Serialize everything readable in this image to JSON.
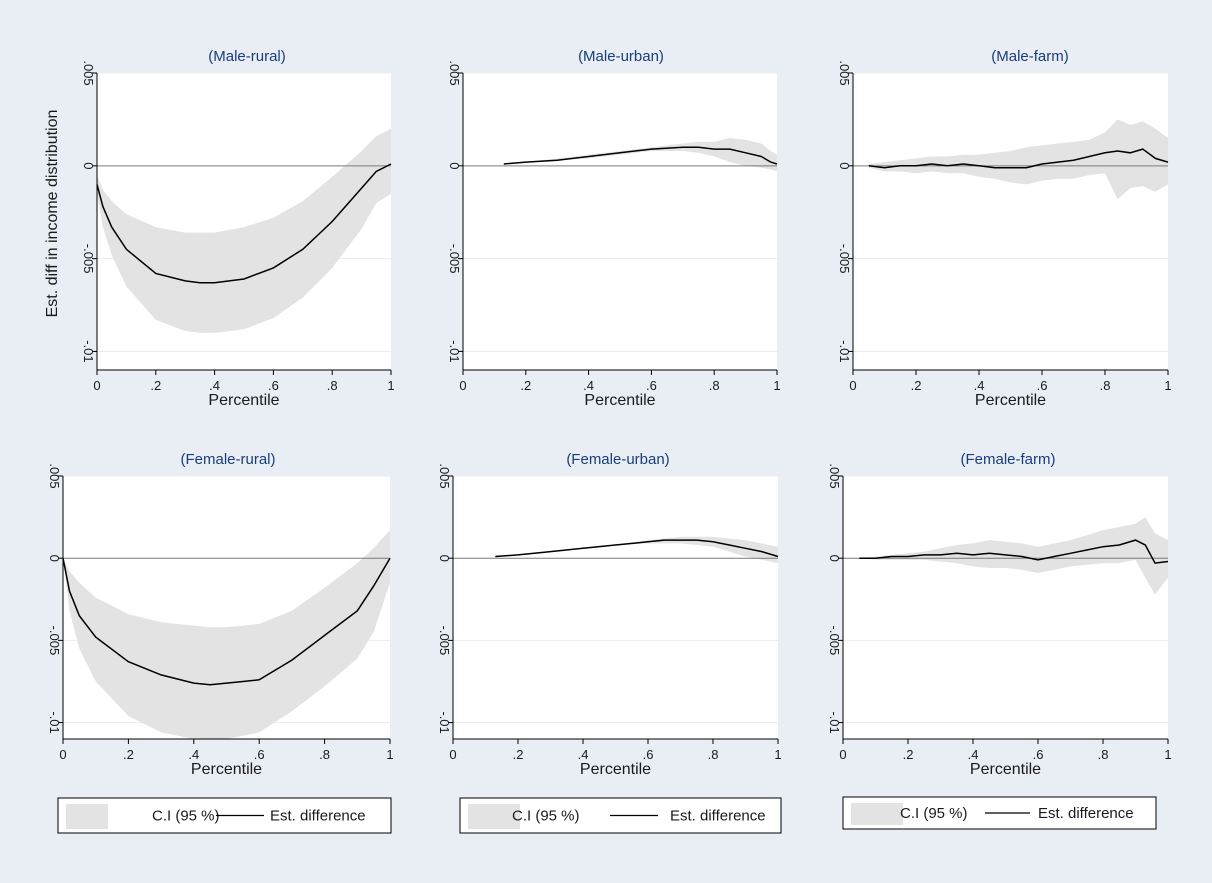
{
  "figure": {
    "background": "#e8eef4",
    "plot_background": "#ffffff",
    "ci_color": "#e3e3e3",
    "line_color": "#000000"
  },
  "chart_data": [
    {
      "type": "area",
      "title": "(Male-rural)",
      "xlabel": "Percentile",
      "ylabel": "Est. diff in income distribution",
      "xlim": [
        0,
        1
      ],
      "ylim": [
        -0.011,
        0.005
      ],
      "x_ticks": [
        "0",
        ".2",
        ".4",
        ".6",
        ".8",
        "1"
      ],
      "y_ticks": [
        ".005",
        "0",
        "-.005",
        "-.01"
      ],
      "x": [
        0,
        0.02,
        0.05,
        0.1,
        0.2,
        0.3,
        0.35,
        0.4,
        0.5,
        0.6,
        0.7,
        0.8,
        0.9,
        0.95,
        1
      ],
      "series": [
        {
          "name": "Est. difference",
          "values": [
            -0.001,
            -0.0022,
            -0.0033,
            -0.0045,
            -0.0058,
            -0.0062,
            -0.0063,
            -0.0063,
            -0.0061,
            -0.0055,
            -0.0045,
            -0.003,
            -0.0012,
            -0.0003,
            0.0001
          ]
        },
        {
          "name": "C.I (95 %) upper",
          "values": [
            -0.0005,
            -0.0013,
            -0.0019,
            -0.0026,
            -0.0033,
            -0.0036,
            -0.0036,
            -0.0036,
            -0.0033,
            -0.0028,
            -0.0019,
            -0.0006,
            0.0008,
            0.0016,
            0.002
          ]
        },
        {
          "name": "C.I (95 %) lower",
          "values": [
            -0.0015,
            -0.0033,
            -0.0048,
            -0.0065,
            -0.0083,
            -0.0089,
            -0.009,
            -0.009,
            -0.0088,
            -0.0082,
            -0.0071,
            -0.0055,
            -0.0034,
            -0.002,
            -0.0015
          ]
        }
      ]
    },
    {
      "type": "area",
      "title": "(Male-urban)",
      "xlabel": "Percentile",
      "xlim": [
        0,
        1
      ],
      "ylim": [
        -0.011,
        0.005
      ],
      "x_ticks": [
        "0",
        ".2",
        ".4",
        ".6",
        ".8",
        "1"
      ],
      "y_ticks": [
        ".005",
        "0",
        "-.005",
        "-.01"
      ],
      "x": [
        0.13,
        0.2,
        0.3,
        0.4,
        0.5,
        0.6,
        0.7,
        0.75,
        0.8,
        0.85,
        0.9,
        0.95,
        0.98,
        1
      ],
      "series": [
        {
          "name": "Est. difference",
          "values": [
            0.0001,
            0.0002,
            0.0003,
            0.0005,
            0.0007,
            0.0009,
            0.001,
            0.001,
            0.0009,
            0.0009,
            0.0007,
            0.0005,
            0.0002,
            0.0001
          ]
        },
        {
          "name": "C.I (95 %) upper",
          "values": [
            0.0001,
            0.0002,
            0.0004,
            0.0006,
            0.0008,
            0.001,
            0.0012,
            0.0013,
            0.0013,
            0.0015,
            0.0014,
            0.0012,
            0.0008,
            0.0006
          ]
        },
        {
          "name": "C.I (95 %) lower",
          "values": [
            0.0001,
            0.0002,
            0.0003,
            0.0004,
            0.0006,
            0.0008,
            0.0008,
            0.0007,
            0.0005,
            0.0002,
            0.0,
            -0.0001,
            -0.0002,
            -0.0003
          ]
        }
      ]
    },
    {
      "type": "area",
      "title": "(Male-farm)",
      "xlabel": "Percentile",
      "xlim": [
        0,
        1
      ],
      "ylim": [
        -0.011,
        0.005
      ],
      "x_ticks": [
        "0",
        ".2",
        ".4",
        ".6",
        ".8",
        "1"
      ],
      "y_ticks": [
        ".005",
        "0",
        "-.005",
        "-.01"
      ],
      "x": [
        0.05,
        0.1,
        0.15,
        0.2,
        0.25,
        0.3,
        0.35,
        0.4,
        0.45,
        0.5,
        0.55,
        0.6,
        0.65,
        0.7,
        0.75,
        0.8,
        0.84,
        0.88,
        0.92,
        0.96,
        1
      ],
      "series": [
        {
          "name": "Est. difference",
          "values": [
            0.0,
            -0.0001,
            0.0,
            0.0,
            0.0001,
            0.0,
            0.0001,
            0.0,
            -0.0001,
            -0.0001,
            -0.0001,
            0.0001,
            0.0002,
            0.0003,
            0.0005,
            0.0007,
            0.0008,
            0.0007,
            0.0009,
            0.0004,
            0.0002
          ]
        },
        {
          "name": "C.I (95 %) upper",
          "values": [
            0.0001,
            0.0002,
            0.0003,
            0.0004,
            0.0005,
            0.0005,
            0.0006,
            0.0006,
            0.0007,
            0.0008,
            0.001,
            0.0011,
            0.0012,
            0.0013,
            0.0014,
            0.0018,
            0.0025,
            0.0022,
            0.0024,
            0.002,
            0.0015
          ]
        },
        {
          "name": "C.I (95 %) lower",
          "values": [
            -0.0001,
            -0.0003,
            -0.0003,
            -0.0004,
            -0.0003,
            -0.0004,
            -0.0004,
            -0.0006,
            -0.0007,
            -0.0009,
            -0.001,
            -0.0008,
            -0.0007,
            -0.0007,
            -0.0005,
            -0.0004,
            -0.0018,
            -0.0012,
            -0.0011,
            -0.0014,
            -0.001
          ]
        }
      ]
    },
    {
      "type": "area",
      "title": "(Female-rural)",
      "xlabel": "Percentile",
      "xlim": [
        0,
        1
      ],
      "ylim": [
        -0.011,
        0.005
      ],
      "x_ticks": [
        "0",
        ".2",
        ".4",
        ".6",
        ".8",
        "1"
      ],
      "y_ticks": [
        ".005",
        "0",
        "-.005",
        "-.01"
      ],
      "x": [
        0,
        0.02,
        0.05,
        0.1,
        0.2,
        0.3,
        0.4,
        0.45,
        0.5,
        0.55,
        0.6,
        0.7,
        0.8,
        0.9,
        0.95,
        1
      ],
      "series": [
        {
          "name": "Est. difference",
          "values": [
            0.0,
            -0.002,
            -0.0035,
            -0.0048,
            -0.0063,
            -0.0071,
            -0.0076,
            -0.0077,
            -0.0076,
            -0.0075,
            -0.0074,
            -0.0062,
            -0.0047,
            -0.0032,
            -0.0017,
            0.0
          ]
        },
        {
          "name": "C.I (95 %) upper",
          "values": [
            0.0,
            -0.0008,
            -0.0015,
            -0.0024,
            -0.0034,
            -0.0039,
            -0.0041,
            -0.0042,
            -0.0042,
            -0.0041,
            -0.004,
            -0.0032,
            -0.0018,
            -0.0003,
            0.0006,
            0.0017
          ]
        },
        {
          "name": "C.I (95 %) lower",
          "values": [
            0.0,
            -0.0032,
            -0.0055,
            -0.0075,
            -0.0096,
            -0.0106,
            -0.011,
            -0.011,
            -0.011,
            -0.0108,
            -0.0106,
            -0.0093,
            -0.0078,
            -0.0061,
            -0.0045,
            -0.0015
          ]
        }
      ]
    },
    {
      "type": "area",
      "title": "(Female-urban)",
      "xlabel": "Percentile",
      "xlim": [
        0,
        1
      ],
      "ylim": [
        -0.011,
        0.005
      ],
      "x_ticks": [
        "0",
        ".2",
        ".4",
        ".6",
        ".8",
        "1"
      ],
      "y_ticks": [
        ".005",
        "0",
        "-.005",
        "-.01"
      ],
      "x": [
        0.13,
        0.2,
        0.3,
        0.4,
        0.5,
        0.6,
        0.65,
        0.7,
        0.75,
        0.8,
        0.85,
        0.9,
        0.95,
        1
      ],
      "series": [
        {
          "name": "Est. difference",
          "values": [
            0.0001,
            0.0002,
            0.0004,
            0.0006,
            0.0008,
            0.001,
            0.0011,
            0.0011,
            0.0011,
            0.001,
            0.0008,
            0.0006,
            0.0004,
            0.0001
          ]
        },
        {
          "name": "C.I (95 %) upper",
          "values": [
            0.0001,
            0.0002,
            0.0004,
            0.0006,
            0.0008,
            0.0011,
            0.0012,
            0.0013,
            0.0013,
            0.0013,
            0.0012,
            0.0011,
            0.0009,
            0.0007
          ]
        },
        {
          "name": "C.I (95 %) lower",
          "values": [
            0.0001,
            0.0002,
            0.0004,
            0.0006,
            0.0008,
            0.0009,
            0.0009,
            0.0009,
            0.0008,
            0.0007,
            0.0004,
            0.0001,
            -0.0001,
            -0.0003
          ]
        }
      ]
    },
    {
      "type": "area",
      "title": "(Female-farm)",
      "xlabel": "Percentile",
      "xlim": [
        0,
        1
      ],
      "ylim": [
        -0.011,
        0.005
      ],
      "x_ticks": [
        "0",
        ".2",
        ".4",
        ".6",
        ".8",
        "1"
      ],
      "y_ticks": [
        ".005",
        "0",
        "-.005",
        "-.01"
      ],
      "x": [
        0.05,
        0.1,
        0.15,
        0.2,
        0.25,
        0.3,
        0.35,
        0.4,
        0.45,
        0.5,
        0.55,
        0.6,
        0.65,
        0.7,
        0.75,
        0.8,
        0.85,
        0.9,
        0.93,
        0.96,
        1
      ],
      "series": [
        {
          "name": "Est. difference",
          "values": [
            0.0,
            0.0,
            0.0001,
            0.0001,
            0.0002,
            0.0002,
            0.0003,
            0.0002,
            0.0003,
            0.0002,
            0.0001,
            -0.0001,
            0.0001,
            0.0003,
            0.0005,
            0.0007,
            0.0008,
            0.0011,
            0.0008,
            -0.0003,
            -0.0002
          ]
        },
        {
          "name": "C.I (95 %) upper",
          "values": [
            0.0,
            0.0001,
            0.0002,
            0.0003,
            0.0004,
            0.0006,
            0.0008,
            0.0009,
            0.0011,
            0.001,
            0.0009,
            0.0007,
            0.0009,
            0.0011,
            0.0014,
            0.0017,
            0.0019,
            0.0021,
            0.0025,
            0.0015,
            0.0011
          ]
        },
        {
          "name": "C.I (95 %) lower",
          "values": [
            0.0,
            -0.0001,
            -0.0001,
            -0.0001,
            -0.0001,
            -0.0002,
            -0.0003,
            -0.0005,
            -0.0006,
            -0.0006,
            -0.0007,
            -0.0009,
            -0.0007,
            -0.0005,
            -0.0004,
            -0.0003,
            -0.0003,
            -0.0001,
            -0.0012,
            -0.0022,
            -0.0012
          ]
        }
      ]
    }
  ],
  "legends": [
    {
      "ci_label": "C.I (95 %)",
      "line_label": "Est. difference"
    },
    {
      "ci_label": "C.I (95 %)",
      "line_label": "Est. difference"
    },
    {
      "ci_label": "C.I (95 %)",
      "line_label": "Est. difference"
    }
  ]
}
